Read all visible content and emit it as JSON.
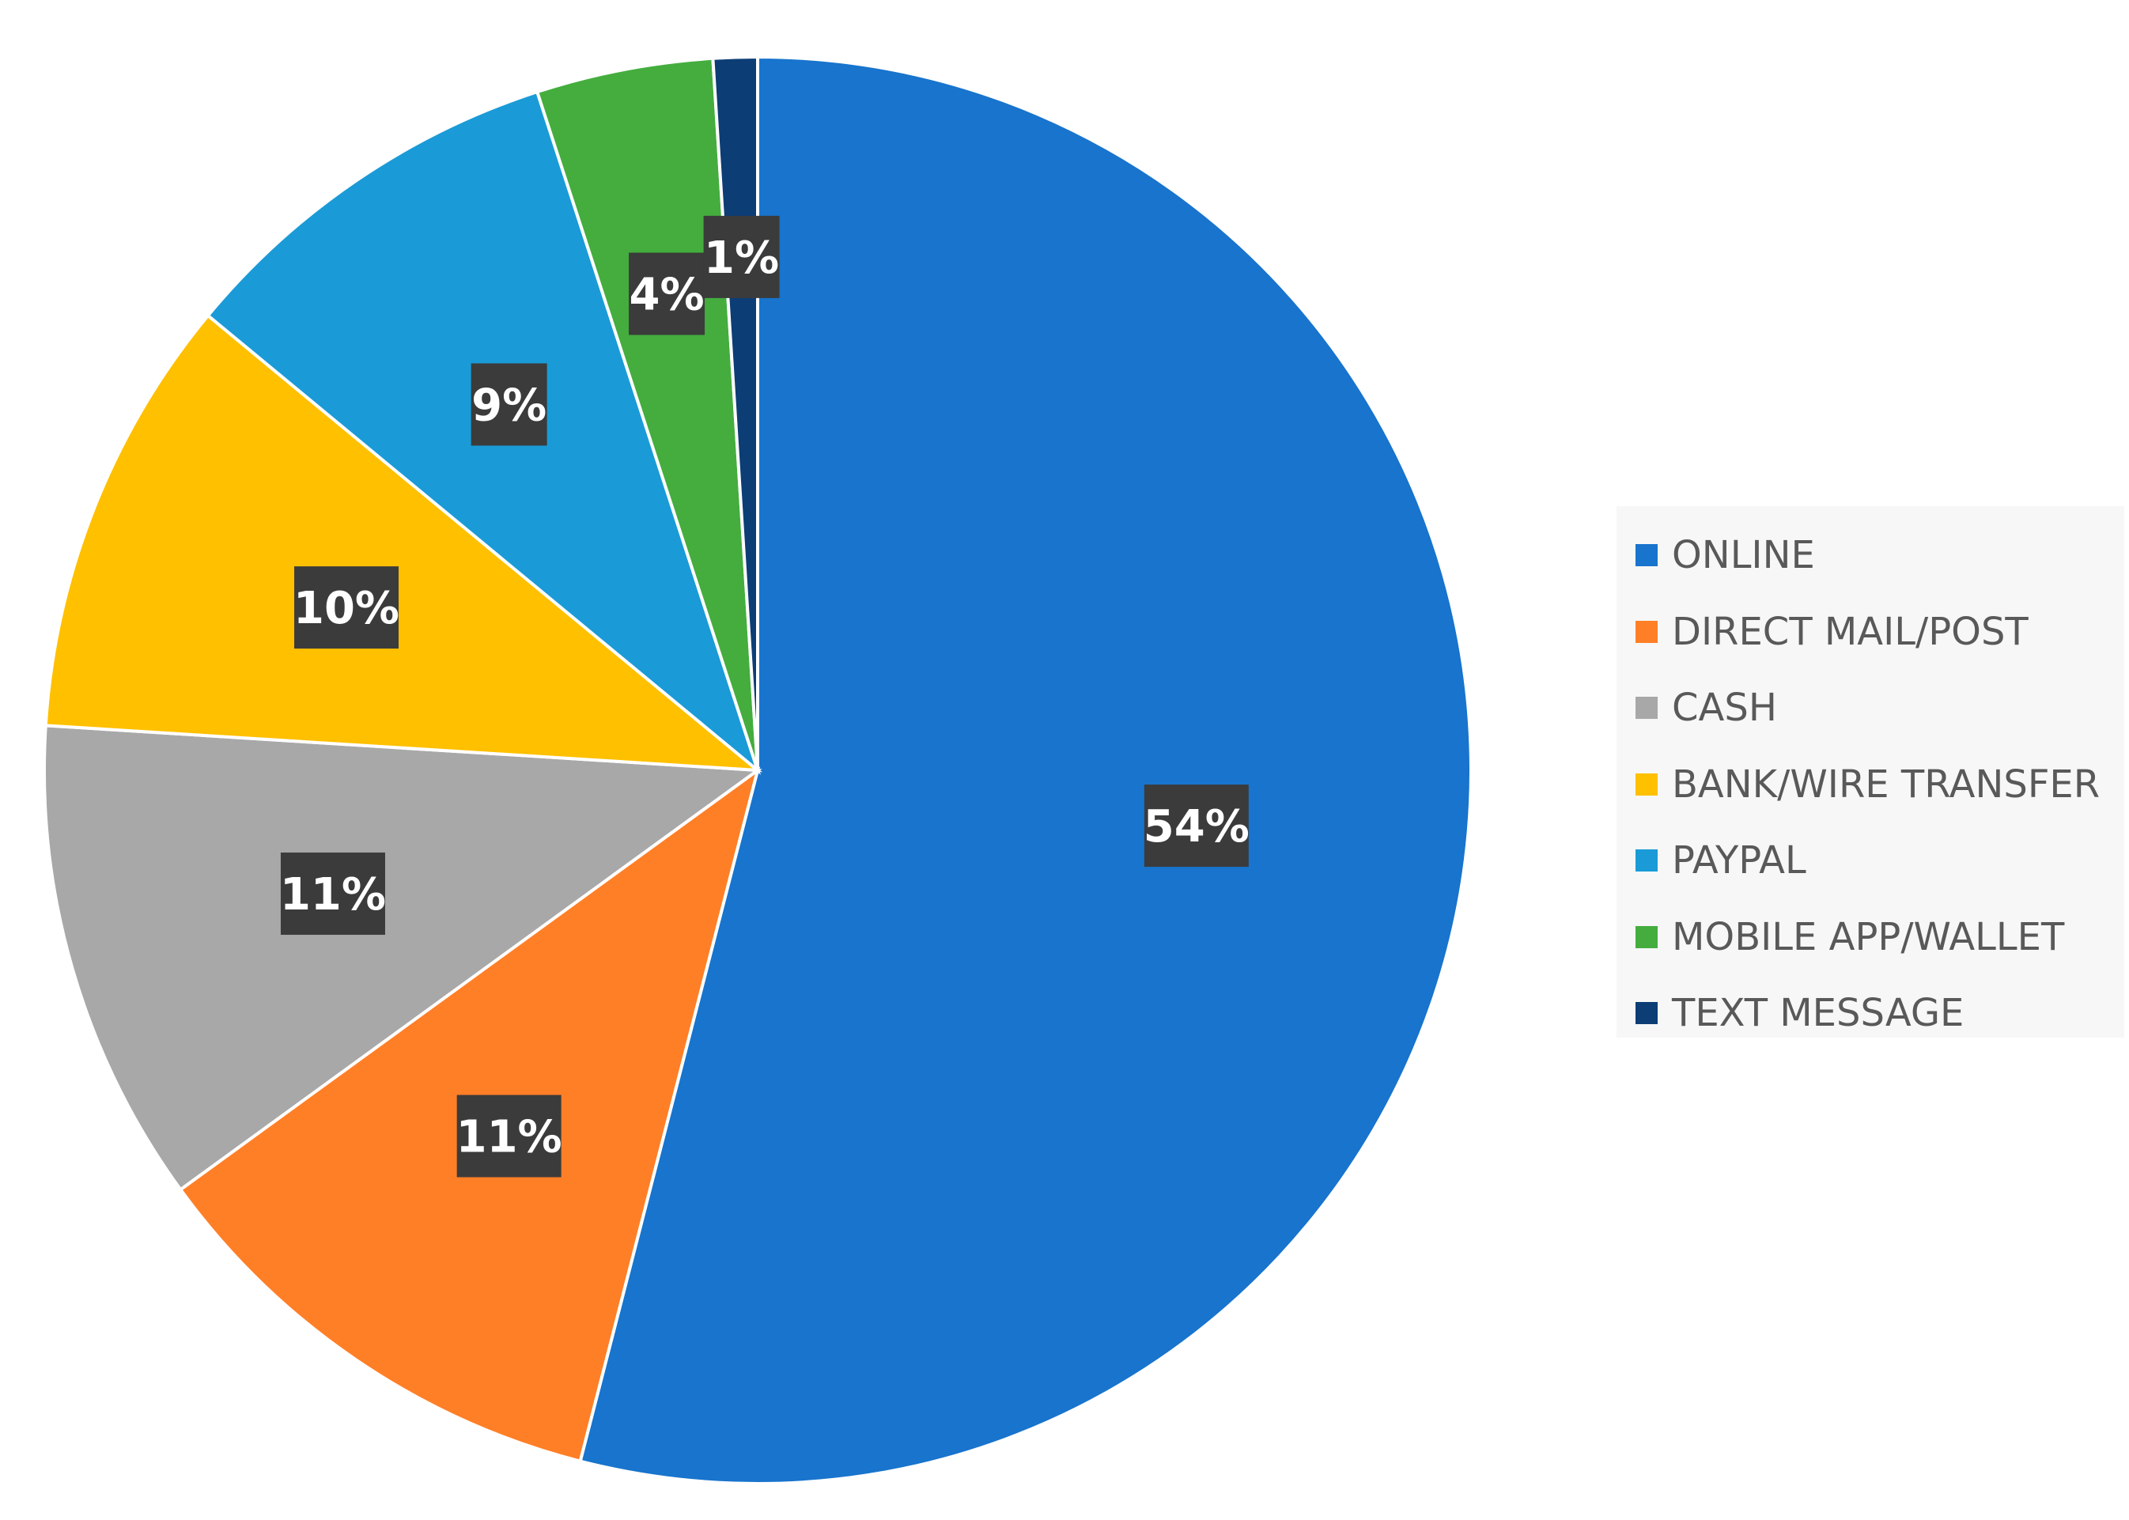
{
  "chart_data": {
    "type": "pie",
    "categories": [
      "ONLINE",
      "DIRECT MAIL/POST",
      "CASH",
      "BANK/WIRE TRANSFER",
      "PAYPAL",
      "MOBILE APP/WALLET",
      "TEXT MESSAGE"
    ],
    "values": [
      54,
      11,
      11,
      10,
      9,
      4,
      1
    ],
    "data_labels": [
      "54%",
      "11%",
      "11%",
      "10%",
      "9%",
      "4%",
      "1%"
    ],
    "colors": [
      "#1874cd",
      "#ff7f27",
      "#a8a8a8",
      "#ffc000",
      "#1a9bd7",
      "#44ad3e",
      "#0d3d75"
    ],
    "direction": "clockwise",
    "start": "12 o'clock",
    "legend_position": "right",
    "title": ""
  }
}
